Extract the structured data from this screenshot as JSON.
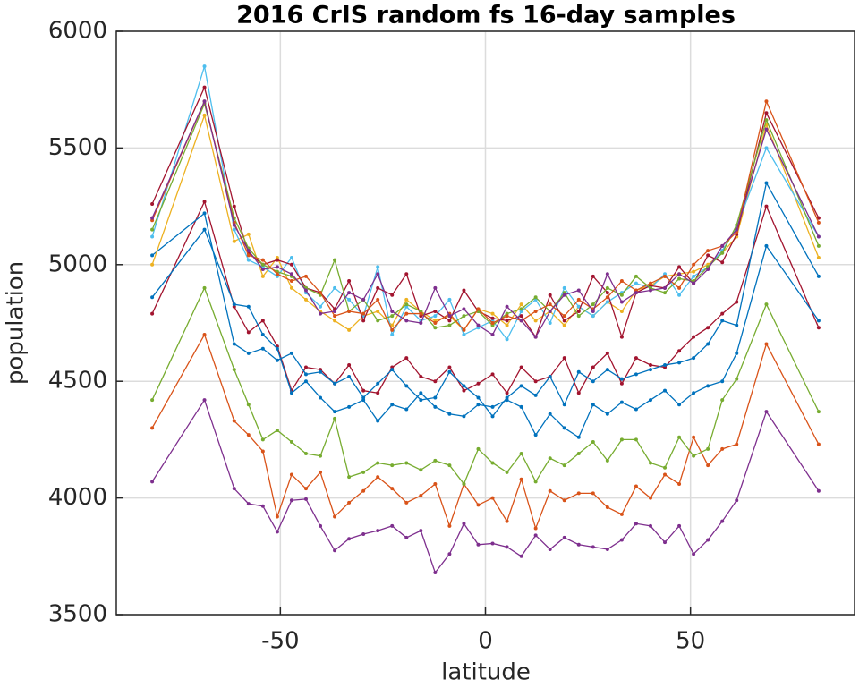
{
  "chart_data": {
    "type": "line",
    "title": "2016 CrIS random fs 16-day samples",
    "x_label": "latitude",
    "y_label": "population",
    "x": [
      -81.25,
      -68.5,
      -61.25,
      -57.75,
      -54.25,
      -50.75,
      -47.25,
      -43.75,
      -40.25,
      -36.75,
      -33.25,
      -29.75,
      -26.25,
      -22.75,
      -19.25,
      -15.75,
      -12.25,
      -8.75,
      -5.25,
      -1.75,
      1.75,
      5.25,
      8.75,
      12.25,
      15.75,
      19.25,
      22.75,
      26.25,
      29.75,
      33.25,
      36.75,
      40.25,
      43.75,
      47.25,
      50.75,
      54.25,
      57.75,
      61.25,
      68.5,
      81.25
    ],
    "xlim": [
      -90,
      90
    ],
    "xticks": [
      -50,
      0,
      50
    ],
    "ylim": [
      3500,
      6000
    ],
    "yticks": [
      3500,
      4000,
      4500,
      5000,
      5500,
      6000
    ],
    "grid": true,
    "series": [
      {
        "color": "#7E2F8E",
        "values": [
          4070,
          4420,
          4040,
          3975,
          3965,
          3855,
          3990,
          3995,
          3880,
          3775,
          3825,
          3845,
          3860,
          3880,
          3830,
          3860,
          3680,
          3760,
          3890,
          3800,
          3805,
          3790,
          3750,
          3840,
          3780,
          3830,
          3800,
          3790,
          3780,
          3820,
          3890,
          3880,
          3810,
          3880,
          3760,
          3820,
          3900,
          3990,
          4370,
          4030
        ]
      },
      {
        "color": "#D95319",
        "values": [
          4300,
          4700,
          4330,
          4270,
          4200,
          3920,
          4100,
          4040,
          4110,
          3920,
          3980,
          4030,
          4090,
          4040,
          3980,
          4010,
          4060,
          3880,
          4060,
          3970,
          4000,
          3900,
          4080,
          3870,
          4030,
          3990,
          4020,
          4020,
          3960,
          3930,
          4050,
          4000,
          4100,
          4060,
          4260,
          4140,
          4210,
          4230,
          4660,
          4230
        ]
      },
      {
        "color": "#77AC30",
        "values": [
          4420,
          4900,
          4550,
          4400,
          4250,
          4290,
          4240,
          4190,
          4180,
          4340,
          4090,
          4110,
          4150,
          4140,
          4150,
          4120,
          4160,
          4140,
          4060,
          4210,
          4150,
          4110,
          4190,
          4070,
          4170,
          4140,
          4190,
          4240,
          4160,
          4250,
          4250,
          4150,
          4130,
          4260,
          4180,
          4210,
          4420,
          4510,
          4830,
          4370
        ]
      },
      {
        "color": "#A2142F",
        "values": [
          4790,
          5270,
          4820,
          4710,
          4760,
          4650,
          4460,
          4560,
          4550,
          4490,
          4570,
          4460,
          4450,
          4560,
          4600,
          4520,
          4500,
          4560,
          4460,
          4490,
          4530,
          4450,
          4560,
          4500,
          4520,
          4600,
          4450,
          4560,
          4620,
          4490,
          4600,
          4570,
          4560,
          4630,
          4690,
          4730,
          4790,
          4840,
          5250,
          4730
        ]
      },
      {
        "color": "#0072BD",
        "values": [
          4860,
          5150,
          4830,
          4820,
          4700,
          4640,
          4450,
          4500,
          4430,
          4370,
          4390,
          4420,
          4330,
          4400,
          4380,
          4450,
          4390,
          4360,
          4350,
          4400,
          4390,
          4420,
          4390,
          4270,
          4360,
          4300,
          4260,
          4400,
          4360,
          4410,
          4380,
          4420,
          4460,
          4400,
          4450,
          4480,
          4500,
          4620,
          5080,
          4760
        ]
      },
      {
        "color": "#0072BD",
        "values": [
          5040,
          5220,
          4660,
          4620,
          4640,
          4590,
          4620,
          4530,
          4540,
          4490,
          4520,
          4430,
          4490,
          4550,
          4480,
          4420,
          4430,
          4540,
          4480,
          4430,
          4350,
          4430,
          4480,
          4440,
          4520,
          4400,
          4540,
          4500,
          4550,
          4510,
          4530,
          4550,
          4570,
          4580,
          4600,
          4660,
          4760,
          4740,
          5350,
          4950
        ]
      },
      {
        "color": "#EDB120",
        "values": [
          5000,
          5640,
          5100,
          5130,
          4950,
          5030,
          4900,
          4850,
          4800,
          4760,
          4720,
          4780,
          4800,
          4740,
          4850,
          4800,
          4760,
          4780,
          4720,
          4810,
          4790,
          4740,
          4830,
          4760,
          4800,
          4740,
          4820,
          4780,
          4840,
          4800,
          4890,
          4910,
          4950,
          4960,
          4970,
          5000,
          5050,
          5120,
          5600,
          5030
        ]
      },
      {
        "color": "#4DBEEE",
        "values": [
          5120,
          5850,
          5150,
          5020,
          4990,
          4950,
          5030,
          4880,
          4820,
          4900,
          4850,
          4780,
          4990,
          4700,
          4820,
          4760,
          4780,
          4850,
          4700,
          4730,
          4760,
          4680,
          4800,
          4850,
          4750,
          4900,
          4820,
          4780,
          4840,
          4880,
          4920,
          4900,
          4960,
          4870,
          4950,
          4990,
          5060,
          5160,
          5500,
          5120
        ]
      },
      {
        "color": "#A2142F",
        "values": [
          5260,
          5760,
          5250,
          5050,
          5000,
          5020,
          5000,
          4900,
          4880,
          4810,
          4930,
          4760,
          4900,
          4870,
          4960,
          4780,
          4800,
          4760,
          4890,
          4800,
          4770,
          4760,
          4780,
          4690,
          4870,
          4760,
          4800,
          4950,
          4880,
          4690,
          4880,
          4910,
          4900,
          4990,
          4920,
          5040,
          5010,
          5130,
          5650,
          5200
        ]
      },
      {
        "color": "#77AC30",
        "values": [
          5150,
          5690,
          5200,
          5070,
          5000,
          4970,
          4950,
          4900,
          4870,
          5020,
          4800,
          4850,
          4760,
          4780,
          4830,
          4800,
          4730,
          4740,
          4780,
          4800,
          4740,
          4790,
          4810,
          4860,
          4800,
          4880,
          4780,
          4830,
          4900,
          4870,
          4950,
          4900,
          4880,
          4940,
          4930,
          4990,
          5050,
          5170,
          5620,
          5080
        ]
      },
      {
        "color": "#D95319",
        "values": [
          5190,
          5700,
          5180,
          5040,
          5020,
          4960,
          4930,
          4950,
          4880,
          4780,
          4800,
          4790,
          4850,
          4720,
          4790,
          4790,
          4750,
          4790,
          4720,
          4810,
          4750,
          4780,
          4760,
          4800,
          4830,
          4780,
          4850,
          4810,
          4860,
          4930,
          4890,
          4920,
          4950,
          4900,
          5000,
          5060,
          5080,
          5140,
          5700,
          5180
        ]
      },
      {
        "color": "#7E2F8E",
        "values": [
          5200,
          5700,
          5170,
          5060,
          4980,
          4990,
          4960,
          4890,
          4790,
          4800,
          4880,
          4850,
          4960,
          4800,
          4760,
          4750,
          4900,
          4780,
          4810,
          4740,
          4700,
          4820,
          4760,
          4690,
          4800,
          4870,
          4890,
          4800,
          4960,
          4840,
          4880,
          4890,
          4900,
          4960,
          4920,
          4980,
          5080,
          5150,
          5580,
          5120
        ]
      }
    ]
  }
}
